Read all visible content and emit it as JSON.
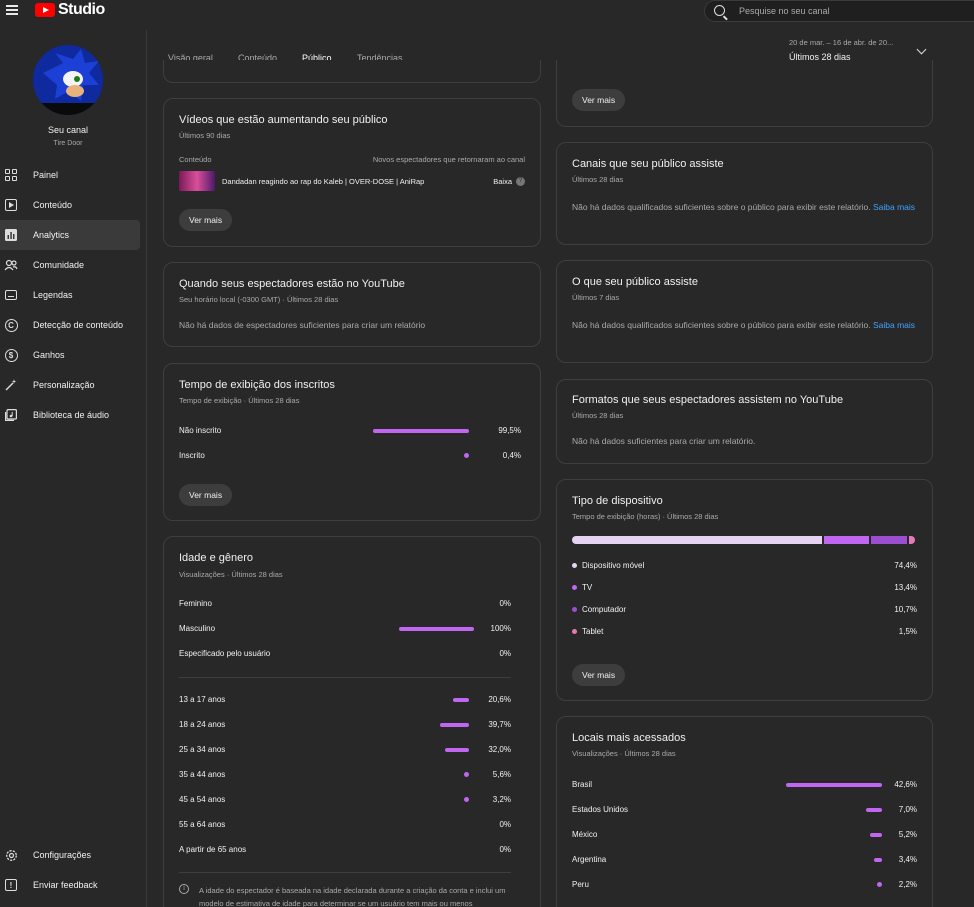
{
  "app": {
    "logo_text": "Studio"
  },
  "search": {
    "placeholder": "Pesquise no seu canal"
  },
  "channel": {
    "title": "Seu canal",
    "name": "Tire Door"
  },
  "sidebar": {
    "items": [
      {
        "label": "Painel",
        "icon": "dashboard-icon"
      },
      {
        "label": "Conteúdo",
        "icon": "content-icon"
      },
      {
        "label": "Analytics",
        "icon": "analytics-icon",
        "active": true
      },
      {
        "label": "Comunidade",
        "icon": "community-icon"
      },
      {
        "label": "Legendas",
        "icon": "subtitles-icon"
      },
      {
        "label": "Detecção de conteúdo",
        "icon": "copyright-icon"
      },
      {
        "label": "Ganhos",
        "icon": "earn-icon"
      },
      {
        "label": "Personalização",
        "icon": "customization-icon"
      },
      {
        "label": "Biblioteca de áudio",
        "icon": "audio-library-icon"
      }
    ],
    "bottom": [
      {
        "label": "Configurações",
        "icon": "settings-icon"
      },
      {
        "label": "Enviar feedback",
        "icon": "feedback-icon"
      }
    ]
  },
  "tabs": [
    {
      "label": "Visão geral"
    },
    {
      "label": "Conteúdo"
    },
    {
      "label": "Público",
      "active": true
    },
    {
      "label": "Tendências"
    }
  ],
  "date": {
    "range": "20 de mar. – 16 de abr. de 20...",
    "label": "Últimos 28 dias"
  },
  "left": {
    "growing": {
      "title": "Vídeos que estão aumentando seu público",
      "sub": "Últimos 90 dias",
      "col_content": "Conteúdo",
      "col_new": "Novos espectadores que retornaram ao canal",
      "video_title": "Dandadan reagindo ao rap do Kaleb | OVER-DOSE | AniRap",
      "video_value": "Baixa",
      "button": "Ver mais"
    },
    "when": {
      "title": "Quando seus espectadores estão no YouTube",
      "sub": "Seu horário local (-0300 GMT) · Últimos 28 dias",
      "text": "Não há dados de espectadores suficientes para criar um relatório"
    },
    "subs": {
      "title": "Tempo de exibição dos inscritos",
      "sub": "Tempo de exibição · Últimos 28 dias",
      "rows": [
        {
          "label": "Não inscrito",
          "value": "99,5%",
          "pct": 99.5
        },
        {
          "label": "Inscrito",
          "value": "0,4%",
          "pct": 0.4
        }
      ],
      "button": "Ver mais"
    },
    "age": {
      "title": "Idade e gênero",
      "sub": "Visualizações · Últimos 28 dias",
      "gender": [
        {
          "label": "Feminino",
          "value": "0%",
          "pct": 0
        },
        {
          "label": "Masculino",
          "value": "100%",
          "pct": 100
        },
        {
          "label": "Especificado pelo usuário",
          "value": "0%",
          "pct": 0
        }
      ],
      "ages": [
        {
          "label": "13 a 17 anos",
          "value": "20,6%",
          "pct": 20.6
        },
        {
          "label": "18 a 24 anos",
          "value": "39,7%",
          "pct": 39.7
        },
        {
          "label": "25 a 34 anos",
          "value": "32,0%",
          "pct": 32.0
        },
        {
          "label": "35 a 44 anos",
          "value": "5,6%",
          "pct": 5.6
        },
        {
          "label": "45 a 54 anos",
          "value": "3,2%",
          "pct": 3.2
        },
        {
          "label": "55 a 64 anos",
          "value": "0%",
          "pct": 0
        },
        {
          "label": "A partir de 65 anos",
          "value": "0%",
          "pct": 0
        }
      ],
      "note": "A idade do espectador é baseada na idade declarada durante a criação da conta e inclui um modelo de estimativa de idade para determinar se um usuário tem mais ou menos"
    }
  },
  "right": {
    "top_button": "Ver mais",
    "channels": {
      "title": "Canais que seu público assiste",
      "sub": "Últimos 28 dias",
      "text": "Não há dados qualificados suficientes sobre o público para exibir este relatório.",
      "link": "Saiba mais"
    },
    "watches": {
      "title": "O que seu público assiste",
      "sub": "Últimos 7 dias",
      "text": "Não há dados qualificados suficientes sobre o público para exibir este relatório.",
      "link": "Saiba mais"
    },
    "formats": {
      "title": "Formatos que seus espectadores assistem no YouTube",
      "sub": "Últimos 28 dias",
      "text": "Não há dados suficientes para criar um relatório."
    },
    "device": {
      "title": "Tipo de dispositivo",
      "sub": "Tempo de exibição (horas) · Últimos 28 dias",
      "rows": [
        {
          "label": "Dispositivo móvel",
          "value": "74,4%",
          "pct": 74.4,
          "color": "#e6d3f2"
        },
        {
          "label": "TV",
          "value": "13,4%",
          "pct": 13.4,
          "color": "#c066f0"
        },
        {
          "label": "Computador",
          "value": "10,7%",
          "pct": 10.7,
          "color": "#9b4fd0"
        },
        {
          "label": "Tablet",
          "value": "1,5%",
          "pct": 1.5,
          "color": "#e879b8"
        }
      ],
      "button": "Ver mais"
    },
    "locations": {
      "title": "Locais mais acessados",
      "sub": "Visualizações · Últimos 28 dias",
      "rows": [
        {
          "label": "Brasil",
          "value": "42,6%",
          "pct": 42.6
        },
        {
          "label": "Estados Unidos",
          "value": "7,0%",
          "pct": 7.0
        },
        {
          "label": "México",
          "value": "5,2%",
          "pct": 5.2
        },
        {
          "label": "Argentina",
          "value": "3,4%",
          "pct": 3.4
        },
        {
          "label": "Peru",
          "value": "2,2%",
          "pct": 2.2
        }
      ]
    }
  }
}
